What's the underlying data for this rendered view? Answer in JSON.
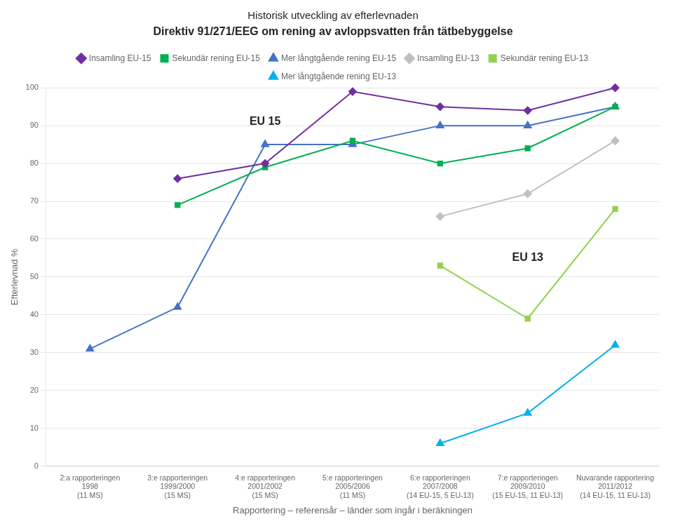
{
  "chart_data": {
    "type": "line",
    "title": "Historisk utveckling av efterlevnaden",
    "subtitle": "Direktiv 91/271/EEG om rening av avloppsvatten från tätbebyggelse",
    "ylabel": "Efterlevnad %",
    "xlabel": "Rapportering – referensår – länder som ingår i beräkningen",
    "categories": [
      "2:a rapporteringen\n1998\n(11 MS)",
      "3:e rapporteringen\n1999/2000\n(15 MS)",
      "4:e rapporteringen\n2001/2002\n(15 MS)",
      "5:e rapporteringen\n2005/2006\n(11 MS)",
      "6:e rapporteringen\n2007/2008\n(14 EU-15, 5 EU-13)",
      "7:e rapporteringen\n2009/2010\n(15 EU-15, 11 EU-13)",
      "Nuvarande rapportering\n2011/2012\n(14 EU-15, 11 EU-13)"
    ],
    "ylim": [
      0,
      100
    ],
    "yticks": [
      0,
      10,
      20,
      30,
      40,
      50,
      60,
      70,
      80,
      90,
      100
    ],
    "grid": "y",
    "legend": "top",
    "series": [
      {
        "name": "Insamling EU-15",
        "color": "#7030A0",
        "marker": "diamond",
        "values": [
          null,
          76,
          80,
          99,
          95,
          94,
          100
        ]
      },
      {
        "name": "Sekundär rening EU-15",
        "color": "#00B050",
        "marker": "square",
        "values": [
          null,
          69,
          79,
          86,
          80,
          84,
          95
        ]
      },
      {
        "name": "Mer långtgående rening EU-15",
        "color": "#4472C4",
        "marker": "triangle",
        "values": [
          31,
          42,
          85,
          85,
          90,
          90,
          95
        ]
      },
      {
        "name": "Insamling EU-13",
        "color": "#C0C0C0",
        "marker": "diamond",
        "values": [
          null,
          null,
          null,
          null,
          66,
          72,
          86
        ]
      },
      {
        "name": "Sekundär rening EU-13",
        "color": "#92D050",
        "marker": "square",
        "values": [
          null,
          null,
          null,
          null,
          53,
          39,
          68
        ]
      },
      {
        "name": "Mer långtgående rening EU-13",
        "color": "#00B0F0",
        "marker": "triangle",
        "values": [
          null,
          null,
          null,
          null,
          6,
          14,
          32
        ]
      }
    ],
    "annotations": [
      {
        "text": "EU 15",
        "x": 2,
        "y": 91
      },
      {
        "text": "EU 13",
        "x": 5,
        "y": 55
      }
    ]
  }
}
